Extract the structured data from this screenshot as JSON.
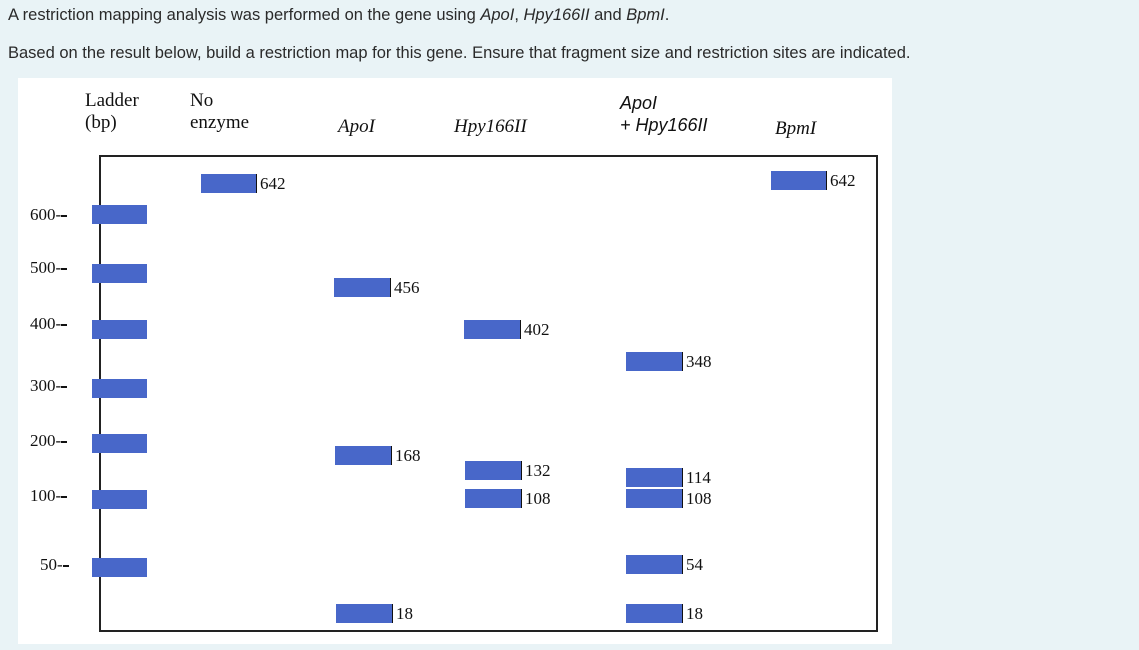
{
  "question": {
    "line1_a": "A restriction mapping analysis was performed on the gene using ",
    "enzyme1": "ApoI",
    "sep1": ", ",
    "enzyme2": "Hpy166II",
    "sep2": " and ",
    "enzyme3": "BpmI",
    "end1": ".",
    "line2": "Based on the result below, build a restriction map for this gene. Ensure that fragment size and restriction sites are indicated."
  },
  "gel": {
    "headers": {
      "ladder_1": "Ladder",
      "ladder_2": "(bp)",
      "noenz_1": "No",
      "noenz_2": "enzyme",
      "apoi": "ApoI",
      "hpy": "Hpy166II",
      "combo_1": "ApoI",
      "combo_2": "+ Hpy166II",
      "bpmi": "BpmI"
    },
    "ladder_ticks": [
      "600-",
      "500-",
      "400-",
      "300-",
      "200-",
      "100-",
      "50-"
    ],
    "band_labels": {
      "noenz_642": "642",
      "apoi_456": "456",
      "apoi_168": "168",
      "apoi_18": "18",
      "hpy_402": "402",
      "hpy_132": "132",
      "hpy_108": "108",
      "combo_348": "348",
      "combo_114": "114",
      "combo_108": "108",
      "combo_54": "54",
      "combo_18": "18",
      "bpmi_642": "642"
    },
    "band_color": "#4867c9"
  }
}
